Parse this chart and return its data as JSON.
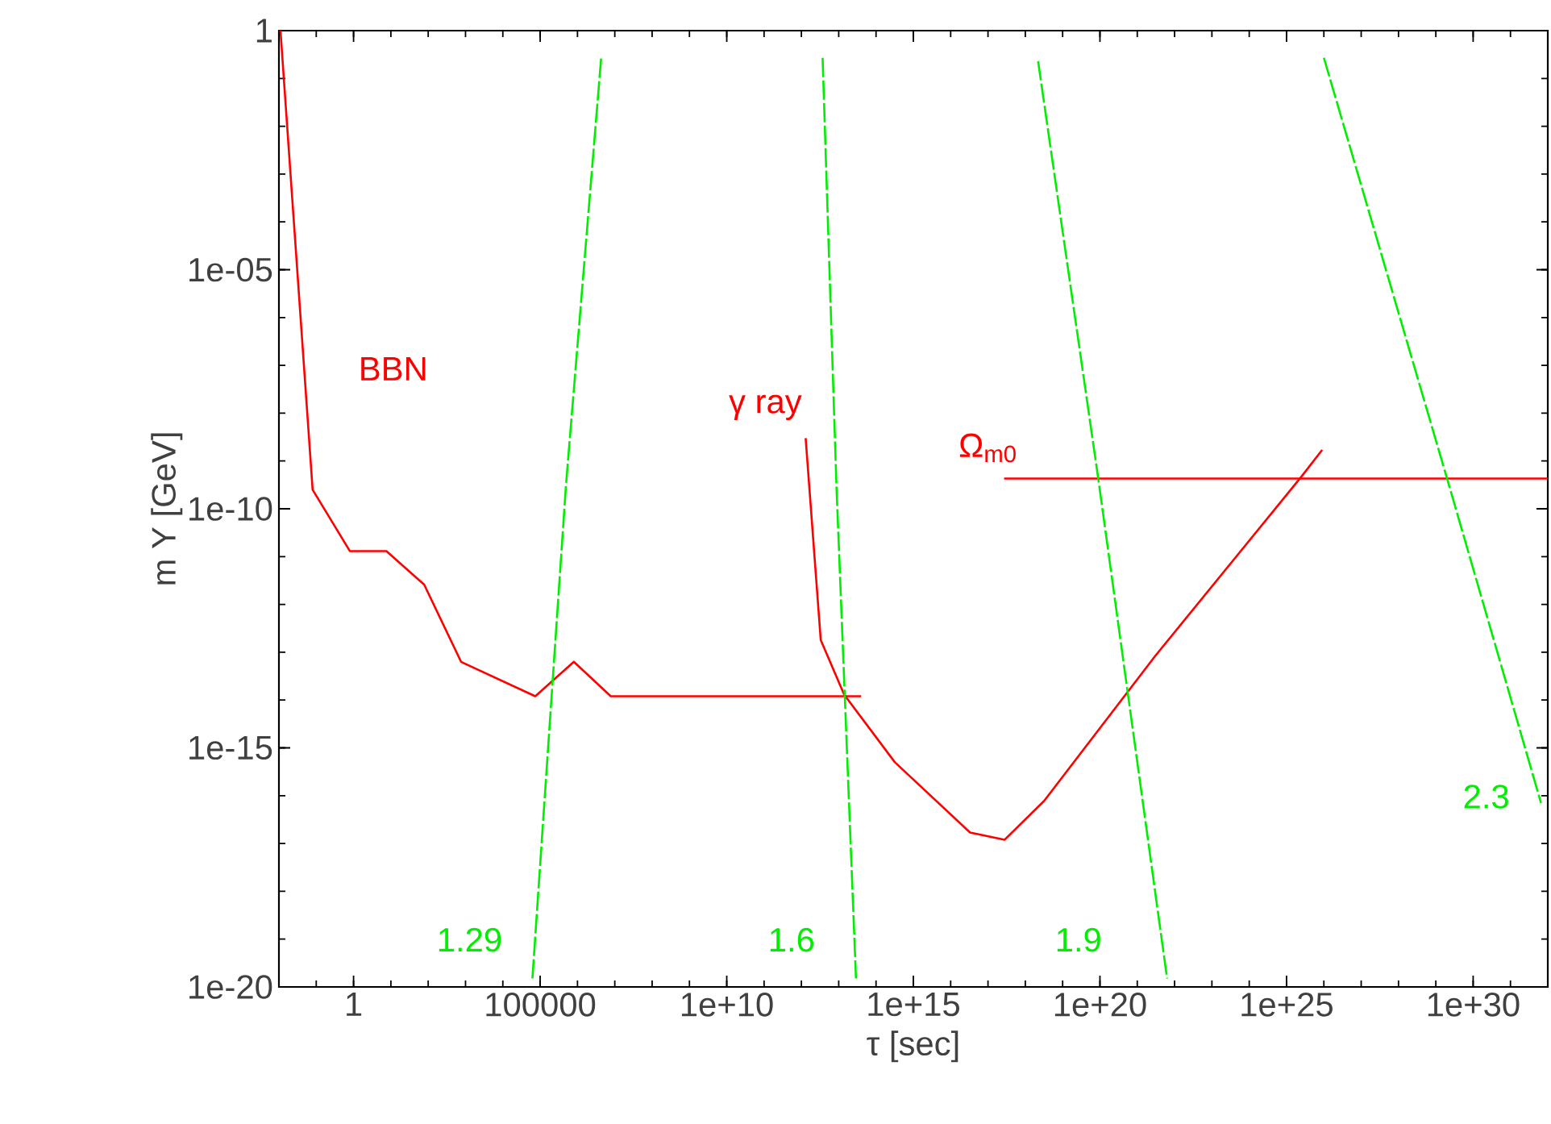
{
  "chart_data": {
    "type": "line",
    "xlabel": "τ [sec]",
    "ylabel": "m Y [GeV]",
    "log": "xy",
    "xlim": [
      0.01,
      1e+32
    ],
    "ylim": [
      1e-20,
      1
    ],
    "xticks": [
      {
        "value": 1,
        "label": "1"
      },
      {
        "value": 100000,
        "label": "100000"
      },
      {
        "value": 10000000000.0,
        "label": "1e+10"
      },
      {
        "value": 1000000000000000.0,
        "label": "1e+15"
      },
      {
        "value": 1e+20,
        "label": "1e+20"
      },
      {
        "value": 1e+25,
        "label": "1e+25"
      },
      {
        "value": 1e+30,
        "label": "1e+30"
      }
    ],
    "yticks": [
      {
        "value": 1e-20,
        "label": "1e-20"
      },
      {
        "value": 1e-15,
        "label": "1e-15"
      },
      {
        "value": 1e-10,
        "label": "1e-10"
      },
      {
        "value": 1e-05,
        "label": "1e-05"
      },
      {
        "value": 1,
        "label": "1"
      }
    ],
    "series": [
      {
        "name": "BBN",
        "color": "#ff0000",
        "line_style": "solid",
        "x": [
          0.011,
          0.08,
          0.8,
          7.6,
          78,
          760,
          74000,
          800000,
          7800000,
          40000000000000.0
        ],
        "values": [
          1,
          2.5e-10,
          1.3e-11,
          1.3e-11,
          2.6e-12,
          6.3e-14,
          1.2e-14,
          6.3e-14,
          1.2e-14,
          1.2e-14
        ]
      },
      {
        "name": "γ ray",
        "color": "#ff0000",
        "line_style": "solid",
        "x": [
          1300000000000.0,
          3300000000000.0,
          14000000000000.0,
          320000000000000.0,
          3.3e+16,
          2.8e+17,
          3.2e+18,
          3e+21,
          2.5e+25,
          9e+25
        ],
        "values": [
          3e-09,
          1.8e-13,
          1.3e-14,
          5e-16,
          1.7e-17,
          1.2e-17,
          7.8e-17,
          8.3e-14,
          4.7e-10,
          1.7e-09
        ]
      },
      {
        "name": "Ω$_{m0}$",
        "color": "#ff0000",
        "line_style": "solid",
        "x": [
          2.7e+17,
          1e+32
        ],
        "values": [
          4.3e-10,
          4.3e-10
        ]
      },
      {
        "name": "1.29",
        "color": "#00ee00",
        "line_style": "dashed",
        "x": [
          4300000.0,
          490000,
          62000
        ],
        "values": [
          0.26,
          3e-10,
          1.5e-20
        ]
      },
      {
        "name": "1.6",
        "color": "#00ee00",
        "line_style": "dashed",
        "x": [
          3700000000000.0,
          8700000000000.0,
          29000000000000.0
        ],
        "values": [
          0.27,
          3e-10,
          1.5e-20
        ]
      },
      {
        "name": "1.9",
        "color": "#00ee00",
        "line_style": "dashed",
        "x": [
          2.2e+18,
          9e+19,
          6.3e+21
        ],
        "values": [
          0.23,
          4.3e-10,
          1.5e-20
        ]
      },
      {
        "name": "2.3",
        "color": "#00ee00",
        "line_style": "dashed",
        "x": [
          1e+26,
          2e+29,
          6.6e+31
        ],
        "values": [
          0.27,
          4.3e-10,
          7e-17
        ]
      }
    ]
  }
}
